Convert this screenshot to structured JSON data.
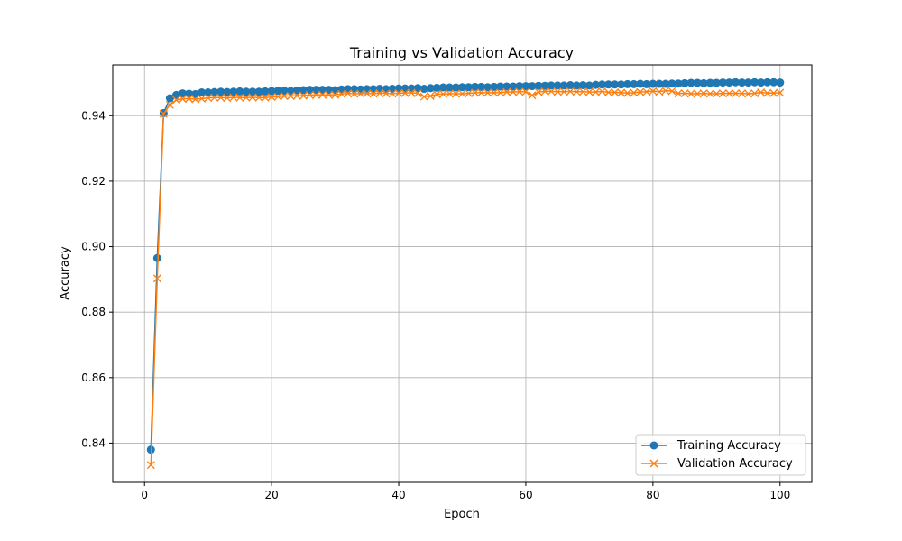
{
  "chart_data": {
    "type": "line",
    "title": "Training vs Validation Accuracy",
    "xlabel": "Epoch",
    "ylabel": "Accuracy",
    "xlim": [
      -5,
      105
    ],
    "ylim": [
      0.828,
      0.9555
    ],
    "xticks": [
      0,
      20,
      40,
      60,
      80,
      100
    ],
    "yticks": [
      0.84,
      0.86,
      0.88,
      0.9,
      0.92,
      0.94
    ],
    "ytick_labels": [
      "0.84",
      "0.86",
      "0.88",
      "0.90",
      "0.92",
      "0.94"
    ],
    "grid": true,
    "legend_position": "lower-right",
    "x": [
      1,
      2,
      3,
      4,
      5,
      6,
      7,
      8,
      9,
      10,
      11,
      12,
      13,
      14,
      15,
      16,
      17,
      18,
      19,
      20,
      21,
      22,
      23,
      24,
      25,
      26,
      27,
      28,
      29,
      30,
      31,
      32,
      33,
      34,
      35,
      36,
      37,
      38,
      39,
      40,
      41,
      42,
      43,
      44,
      45,
      46,
      47,
      48,
      49,
      50,
      51,
      52,
      53,
      54,
      55,
      56,
      57,
      58,
      59,
      60,
      61,
      62,
      63,
      64,
      65,
      66,
      67,
      68,
      69,
      70,
      71,
      72,
      73,
      74,
      75,
      76,
      77,
      78,
      79,
      80,
      81,
      82,
      83,
      84,
      85,
      86,
      87,
      88,
      89,
      90,
      91,
      92,
      93,
      94,
      95,
      96,
      97,
      98,
      99,
      100
    ],
    "series": [
      {
        "name": "Training Accuracy",
        "color": "#1f77b4",
        "marker": "circle",
        "values": [
          0.838,
          0.8965,
          0.9408,
          0.9453,
          0.9463,
          0.9468,
          0.9467,
          0.9466,
          0.9471,
          0.9471,
          0.9472,
          0.9473,
          0.9472,
          0.9473,
          0.9474,
          0.9473,
          0.9473,
          0.9473,
          0.9474,
          0.9475,
          0.9476,
          0.9476,
          0.9475,
          0.9477,
          0.9478,
          0.9479,
          0.9479,
          0.9479,
          0.9479,
          0.9478,
          0.948,
          0.9481,
          0.9481,
          0.948,
          0.9481,
          0.9481,
          0.9482,
          0.9481,
          0.9482,
          0.9483,
          0.9483,
          0.9483,
          0.9484,
          0.9482,
          0.9484,
          0.9485,
          0.9486,
          0.9486,
          0.9486,
          0.9487,
          0.9487,
          0.9488,
          0.9488,
          0.9487,
          0.9488,
          0.9489,
          0.9489,
          0.9489,
          0.949,
          0.949,
          0.949,
          0.9491,
          0.9491,
          0.9492,
          0.9492,
          0.9492,
          0.9493,
          0.9492,
          0.9493,
          0.9492,
          0.9494,
          0.9495,
          0.9495,
          0.9495,
          0.9495,
          0.9496,
          0.9496,
          0.9497,
          0.9496,
          0.9497,
          0.9497,
          0.9497,
          0.9498,
          0.9498,
          0.9499,
          0.95,
          0.95,
          0.9499,
          0.95,
          0.95,
          0.9501,
          0.9501,
          0.9502,
          0.9501,
          0.9501,
          0.9502,
          0.9501,
          0.9502,
          0.9502,
          0.9501
        ]
      },
      {
        "name": "Validation Accuracy",
        "color": "#ff7f0e",
        "marker": "x",
        "values": [
          0.8333,
          0.8903,
          0.9406,
          0.9433,
          0.9448,
          0.9451,
          0.9452,
          0.945,
          0.9452,
          0.9454,
          0.9455,
          0.9455,
          0.9454,
          0.9456,
          0.9455,
          0.9455,
          0.9456,
          0.9455,
          0.9455,
          0.9457,
          0.9458,
          0.946,
          0.946,
          0.9461,
          0.9461,
          0.9463,
          0.9463,
          0.9464,
          0.9463,
          0.9464,
          0.9466,
          0.9468,
          0.9467,
          0.9467,
          0.9468,
          0.9467,
          0.9469,
          0.9468,
          0.9467,
          0.9469,
          0.9469,
          0.947,
          0.9468,
          0.9458,
          0.946,
          0.9465,
          0.9466,
          0.9467,
          0.9467,
          0.9467,
          0.9468,
          0.947,
          0.947,
          0.947,
          0.947,
          0.947,
          0.9472,
          0.9472,
          0.9473,
          0.9473,
          0.9462,
          0.9472,
          0.9474,
          0.9474,
          0.9473,
          0.9473,
          0.9474,
          0.9473,
          0.9473,
          0.9472,
          0.9472,
          0.9474,
          0.9471,
          0.9471,
          0.947,
          0.9469,
          0.947,
          0.9472,
          0.9473,
          0.9475,
          0.9473,
          0.9476,
          0.9475,
          0.9468,
          0.9468,
          0.9467,
          0.9467,
          0.9468,
          0.9467,
          0.9467,
          0.9468,
          0.9468,
          0.9468,
          0.9468,
          0.9467,
          0.9468,
          0.9471,
          0.9469,
          0.9469,
          0.947
        ]
      }
    ]
  }
}
